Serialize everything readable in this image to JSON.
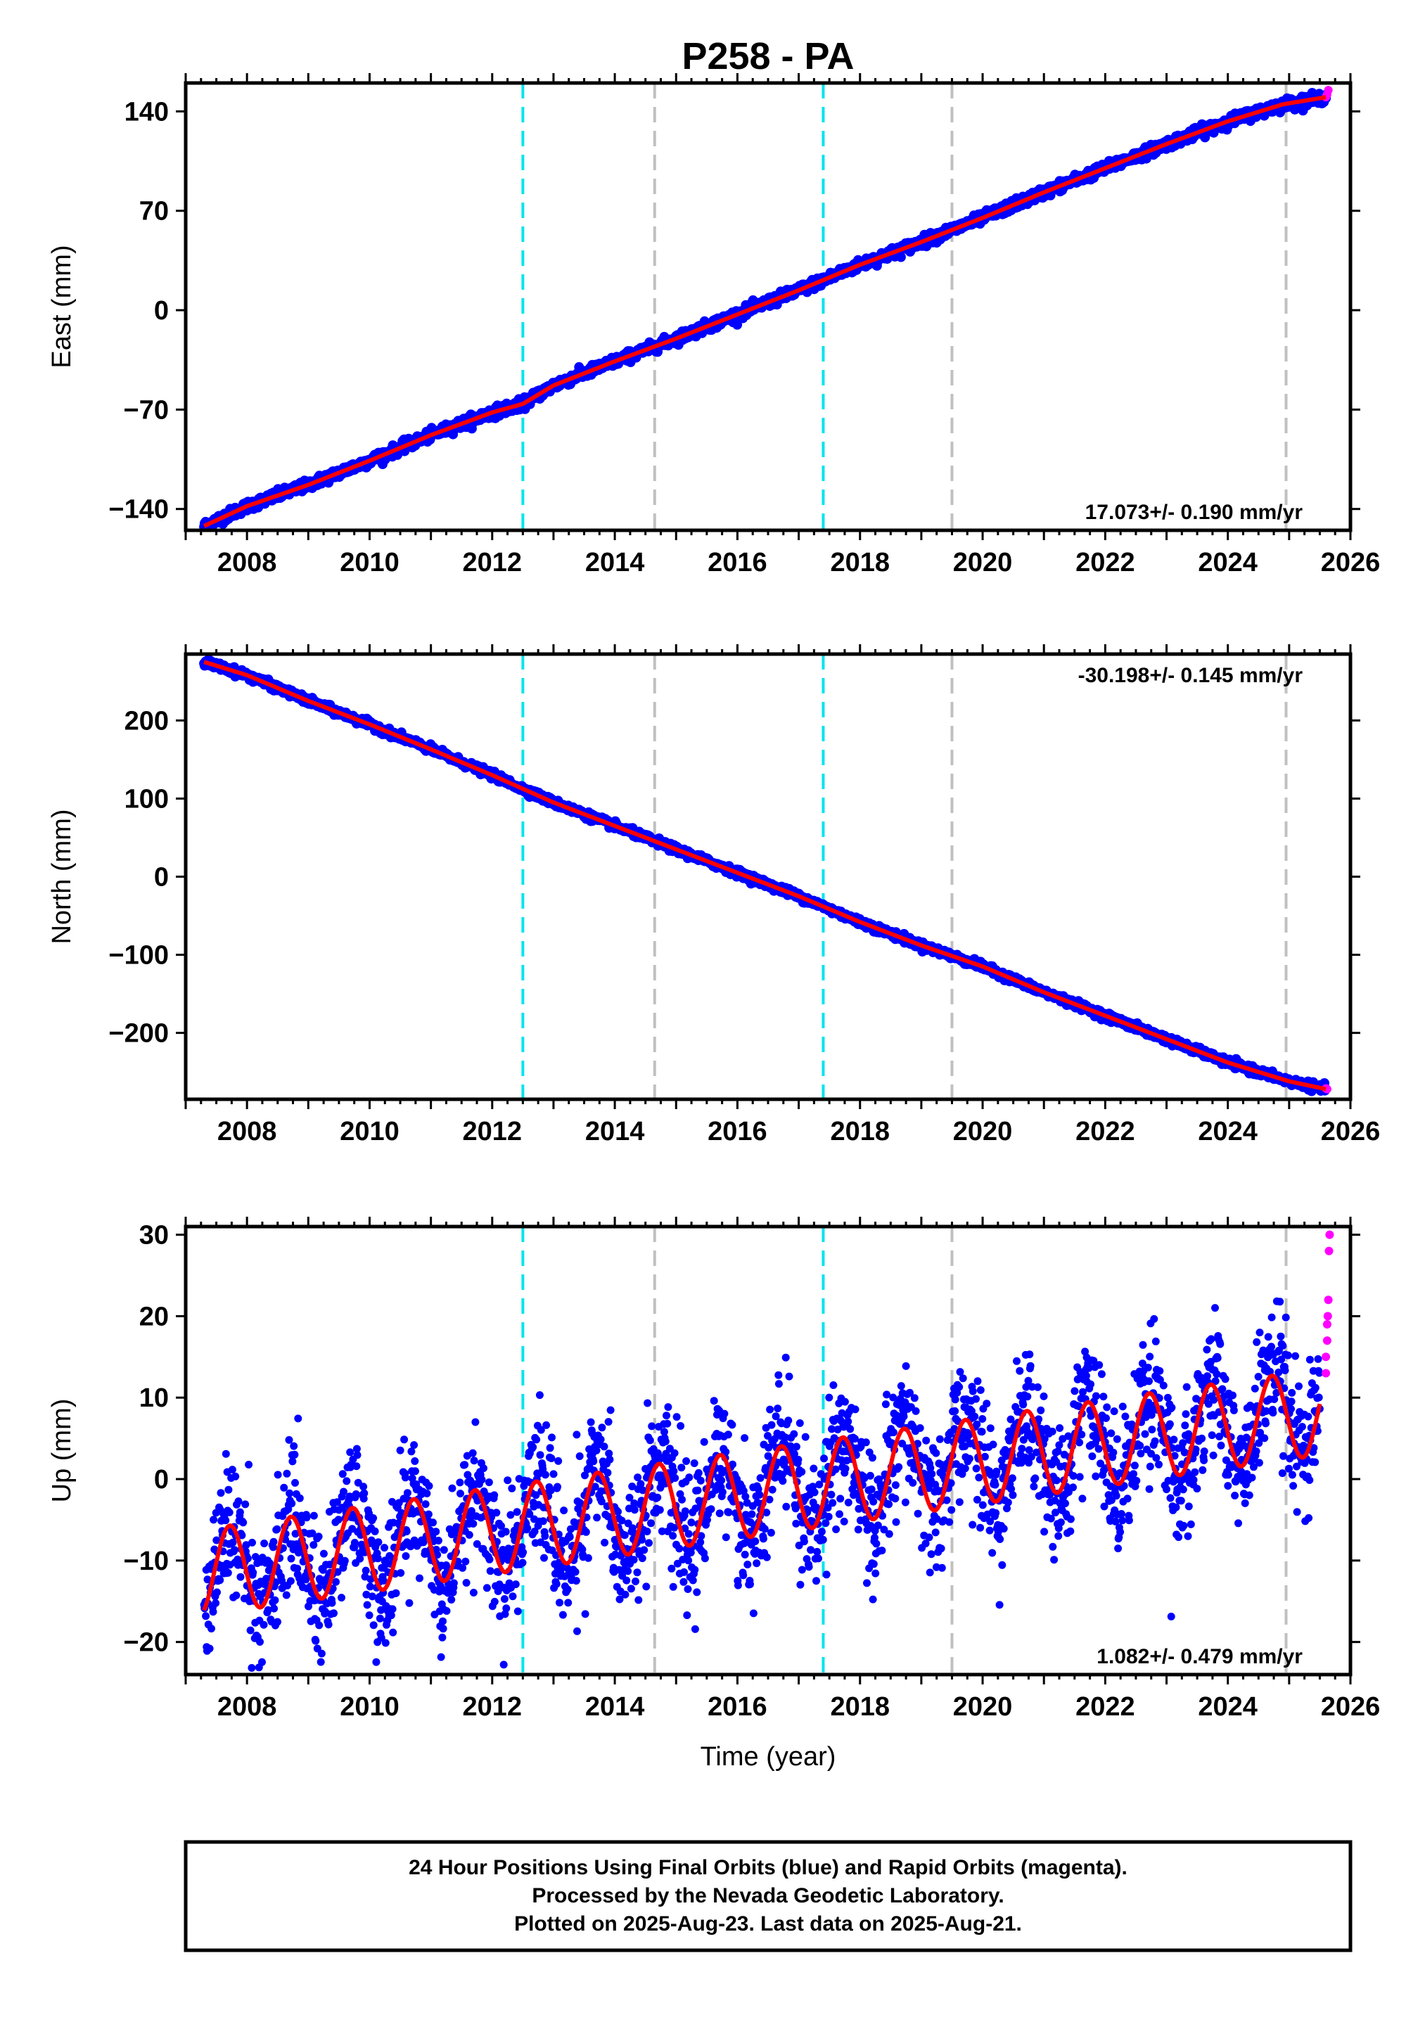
{
  "title": "P258 - PA",
  "colors": {
    "final_orbits": "#0000ff",
    "rapid_orbits": "#ff00ff",
    "model": "#ff0000",
    "marker_cyan": "#00e5ee",
    "marker_gray": "#c0c0c0"
  },
  "chart_data": [
    {
      "type": "scatter",
      "panel": "east",
      "ylabel": "East (mm)",
      "xlim": [
        2007.0,
        2026.0
      ],
      "ylim": [
        -155,
        160
      ],
      "yticks": [
        -140,
        -70,
        0,
        70,
        140
      ],
      "xticks": [
        2008,
        2010,
        2012,
        2014,
        2016,
        2018,
        2020,
        2022,
        2024,
        2026
      ],
      "rate_label": "17.073+/- 0.190 mm/yr",
      "series": [
        {
          "role": "final-orbits",
          "x": [
            2007.3,
            2008.0,
            2009.0,
            2010.0,
            2011.0,
            2012.0,
            2012.5,
            2013.0,
            2014.0,
            2015.0,
            2016.0,
            2017.0,
            2018.0,
            2019.0,
            2020.0,
            2021.0,
            2022.0,
            2023.0,
            2024.0,
            2024.9,
            2025.6
          ],
          "y": [
            -152,
            -138,
            -123,
            -106,
            -88,
            -72,
            -66,
            -53,
            -36,
            -20,
            -3,
            14,
            32,
            48,
            65,
            83,
            100,
            117,
            133,
            145,
            150
          ]
        },
        {
          "role": "rapid-orbits",
          "x": [
            2025.6,
            2025.62,
            2025.64
          ],
          "y": [
            150,
            152,
            155
          ]
        }
      ],
      "vlines": [
        {
          "x": 2012.5,
          "style": "cyan"
        },
        {
          "x": 2014.65,
          "style": "gray"
        },
        {
          "x": 2017.4,
          "style": "cyan"
        },
        {
          "x": 2019.5,
          "style": "gray"
        },
        {
          "x": 2024.95,
          "style": "gray"
        }
      ]
    },
    {
      "type": "scatter",
      "panel": "north",
      "ylabel": "North (mm)",
      "xlim": [
        2007.0,
        2026.0
      ],
      "ylim": [
        -285,
        285
      ],
      "yticks": [
        -200,
        -100,
        0,
        100,
        200
      ],
      "xticks": [
        2008,
        2010,
        2012,
        2014,
        2016,
        2018,
        2020,
        2022,
        2024,
        2026
      ],
      "rate_label": "-30.198+/- 0.145 mm/yr",
      "series": [
        {
          "role": "final-orbits",
          "x": [
            2007.3,
            2008.0,
            2009.0,
            2010.0,
            2011.0,
            2012.0,
            2013.0,
            2014.0,
            2015.0,
            2016.0,
            2017.0,
            2018.0,
            2019.0,
            2020.0,
            2021.0,
            2022.0,
            2023.0,
            2024.0,
            2025.0,
            2025.6
          ],
          "y": [
            275,
            258,
            225,
            195,
            163,
            130,
            95,
            65,
            35,
            5,
            -25,
            -58,
            -88,
            -115,
            -148,
            -178,
            -208,
            -238,
            -262,
            -272
          ]
        },
        {
          "role": "rapid-orbits",
          "x": [
            2025.6,
            2025.62
          ],
          "y": [
            -271,
            -272
          ]
        }
      ],
      "vlines": [
        {
          "x": 2012.5,
          "style": "cyan"
        },
        {
          "x": 2014.65,
          "style": "gray"
        },
        {
          "x": 2017.4,
          "style": "cyan"
        },
        {
          "x": 2019.5,
          "style": "gray"
        },
        {
          "x": 2024.95,
          "style": "gray"
        }
      ]
    },
    {
      "type": "scatter",
      "panel": "up",
      "ylabel": "Up (mm)",
      "xlabel": "Time (year)",
      "xlim": [
        2007.0,
        2026.0
      ],
      "ylim": [
        -24,
        31
      ],
      "yticks": [
        -20,
        -10,
        0,
        10,
        20,
        30
      ],
      "xticks": [
        2008,
        2010,
        2012,
        2014,
        2016,
        2018,
        2020,
        2022,
        2024,
        2026
      ],
      "rate_label": "1.082+/- 0.479 mm/yr",
      "model": {
        "trend_mm_per_yr": 1.082,
        "offset_mm": 0.0,
        "amplitude_mm": 5.3,
        "peak_phase_year_fraction": 0.72
      },
      "series": [
        {
          "role": "final-orbits",
          "x": [
            2007.3,
            2007.7,
            2008.2,
            2008.7,
            2009.2,
            2009.7,
            2010.2,
            2010.7,
            2011.2,
            2011.7,
            2012.2,
            2012.7,
            2013.2,
            2013.7,
            2014.2,
            2014.7,
            2015.2,
            2015.7,
            2016.2,
            2016.7,
            2017.2,
            2017.7,
            2018.2,
            2018.7,
            2019.2,
            2019.7,
            2020.2,
            2020.7,
            2021.2,
            2021.7,
            2022.2,
            2022.7,
            2023.2,
            2023.7,
            2024.2,
            2024.7,
            2025.2,
            2025.5
          ],
          "y": [
            -11,
            0,
            -10,
            1,
            -9,
            2,
            -8,
            3,
            -7,
            4,
            -6,
            2,
            -9,
            3,
            -8,
            4,
            -6,
            5,
            -5,
            6,
            -4,
            2,
            -8,
            3,
            -7,
            5,
            -5,
            6,
            -4,
            7,
            -3,
            8,
            -2,
            9,
            -1,
            10,
            -1,
            8
          ]
        },
        {
          "role": "rapid-orbits",
          "x": [
            2025.6,
            2025.6,
            2025.62,
            2025.62,
            2025.63,
            2025.64,
            2025.65,
            2025.66
          ],
          "y": [
            13,
            15,
            17,
            19,
            20,
            22,
            28,
            30
          ]
        }
      ],
      "vlines": [
        {
          "x": 2012.5,
          "style": "cyan"
        },
        {
          "x": 2014.65,
          "style": "gray"
        },
        {
          "x": 2017.4,
          "style": "cyan"
        },
        {
          "x": 2019.5,
          "style": "gray"
        },
        {
          "x": 2024.95,
          "style": "gray"
        }
      ]
    }
  ],
  "footer": {
    "line1": "24 Hour Positions Using Final Orbits (blue) and Rapid Orbits (magenta).",
    "line2": "Processed by the Nevada Geodetic Laboratory.",
    "line3": "Plotted on 2025-Aug-23. Last data on 2025-Aug-21."
  }
}
